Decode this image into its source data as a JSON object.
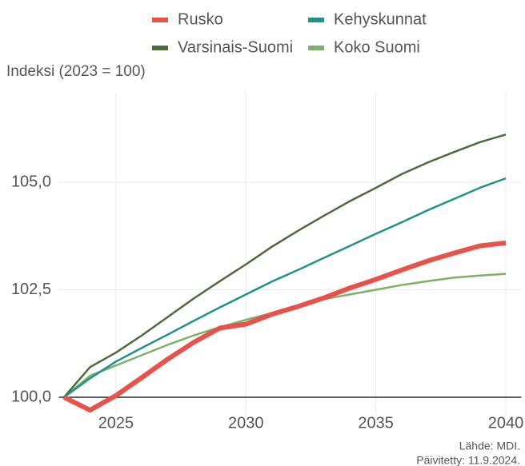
{
  "chart_data": {
    "type": "line",
    "y_axis_title": "Indeksi (2023 = 100)",
    "x": [
      2023,
      2024,
      2025,
      2026,
      2027,
      2028,
      2029,
      2030,
      2031,
      2032,
      2033,
      2034,
      2035,
      2036,
      2037,
      2038,
      2039,
      2040
    ],
    "series": [
      {
        "name": "Rusko",
        "color": "#e8524a",
        "linewidth": 6,
        "values": [
          100,
          99.7,
          100.04,
          100.46,
          100.89,
          101.28,
          101.61,
          101.7,
          101.93,
          102.11,
          102.31,
          102.54,
          102.74,
          102.96,
          103.17,
          103.35,
          103.52,
          103.59
        ]
      },
      {
        "name": "Kehyskunnat",
        "color": "#21928a",
        "linewidth": 2.5,
        "values": [
          100,
          100.44,
          100.83,
          101.15,
          101.46,
          101.78,
          102.09,
          102.39,
          102.69,
          102.96,
          103.24,
          103.52,
          103.8,
          104.07,
          104.35,
          104.61,
          104.87,
          105.09
        ]
      },
      {
        "name": "Varsinais-Suomi",
        "color": "#4d6b3c",
        "linewidth": 2.5,
        "values": [
          100,
          100.7,
          101.04,
          101.44,
          101.87,
          102.3,
          102.7,
          103.09,
          103.5,
          103.87,
          104.22,
          104.56,
          104.87,
          105.19,
          105.46,
          105.7,
          105.93,
          106.11
        ]
      },
      {
        "name": "Koko Suomi",
        "color": "#7fb069",
        "linewidth": 2.5,
        "values": [
          100,
          100.5,
          100.74,
          100.98,
          101.22,
          101.44,
          101.63,
          101.8,
          101.96,
          102.11,
          102.28,
          102.39,
          102.5,
          102.61,
          102.7,
          102.78,
          102.83,
          102.87
        ]
      }
    ],
    "xlim": [
      2022.8,
      2040.6
    ],
    "xticks": [
      2025,
      2030,
      2035,
      2040
    ],
    "ylim": [
      99.6,
      107.1
    ],
    "yticks": [
      {
        "value": 100,
        "label": "100,0"
      },
      {
        "value": 102.5,
        "label": "102,5"
      },
      {
        "value": 105,
        "label": "105,0"
      }
    ],
    "grid": true,
    "source": [
      "Lähde: MDI.",
      "Päivitetty: 11.9.2024."
    ]
  }
}
